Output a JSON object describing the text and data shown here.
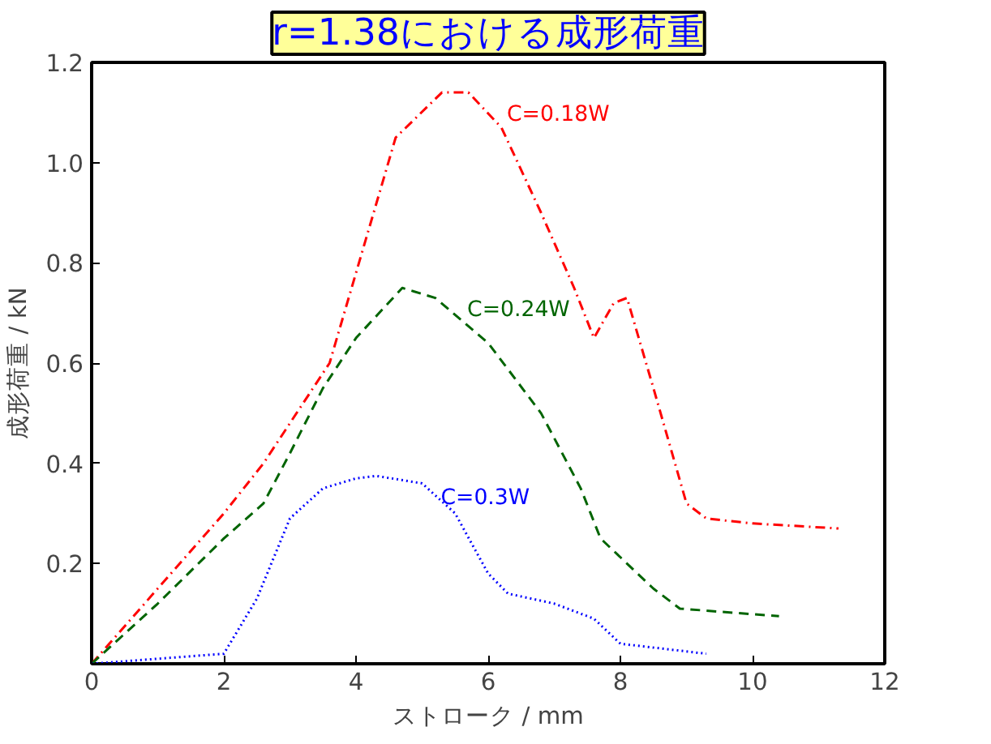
{
  "chart_data": {
    "type": "line",
    "title": "r=1.38における成形荷重",
    "xlabel": "ストローク / mm",
    "ylabel": "成形荷重 / kN",
    "xlim": [
      0,
      12
    ],
    "ylim": [
      0,
      1.2
    ],
    "xticks": [
      0,
      2,
      4,
      6,
      8,
      10,
      12
    ],
    "yticks": [
      0.2,
      0.4,
      0.6,
      0.8,
      {
        "value": 1,
        "label": "1.0"
      },
      1.2
    ],
    "grid": false,
    "series": [
      {
        "name": "C=0.18W",
        "color": "#ff0000",
        "line_style": "dashdot",
        "x": [
          0,
          2,
          2.6,
          3.6,
          4.2,
          4.6,
          5.3,
          5.7,
          6.2,
          6.8,
          7.3,
          7.6,
          7.9,
          8.1,
          8.5,
          9.0,
          9.3,
          10,
          11.3
        ],
        "values": [
          0,
          0.3,
          0.4,
          0.6,
          0.87,
          1.05,
          1.14,
          1.14,
          1.07,
          0.9,
          0.75,
          0.65,
          0.72,
          0.73,
          0.55,
          0.32,
          0.29,
          0.28,
          0.27
        ]
      },
      {
        "name": "C=0.24W",
        "color": "#006400",
        "line_style": "dashed",
        "x": [
          0,
          1,
          2,
          2.6,
          3.0,
          3.5,
          4.0,
          4.7,
          5.2,
          6,
          6.8,
          7.4,
          7.7,
          8.5,
          8.9,
          10.4
        ],
        "values": [
          0,
          0.12,
          0.25,
          0.32,
          0.42,
          0.55,
          0.65,
          0.75,
          0.73,
          0.64,
          0.5,
          0.35,
          0.25,
          0.15,
          0.11,
          0.095
        ]
      },
      {
        "name": "C=0.3W",
        "color": "#0000ff",
        "line_style": "dotted",
        "x": [
          0,
          2,
          2.5,
          3.0,
          3.5,
          4,
          4.3,
          5,
          5.5,
          6,
          6.3,
          7,
          7.6,
          8,
          9.3
        ],
        "values": [
          0,
          0.02,
          0.13,
          0.29,
          0.35,
          0.37,
          0.375,
          0.36,
          0.3,
          0.18,
          0.14,
          0.12,
          0.09,
          0.04,
          0.02
        ]
      }
    ]
  }
}
